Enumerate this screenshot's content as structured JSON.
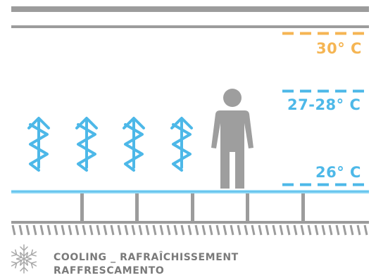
{
  "temperatures": {
    "high": "30° C",
    "mid": "27-28° C",
    "low": "26° C"
  },
  "caption": {
    "line1": "COOLING _ RAFRAÎCHISSEMENT",
    "line2": "RAFFRESCAMENTO"
  },
  "colors": {
    "warm": "#f5b553",
    "cool": "#4db8e8",
    "floor": "#8fd8f5",
    "structure": "#9c9c9c",
    "person": "#9e9e9e",
    "caption": "#7a7a7a"
  },
  "icons": {
    "air_flow": "wavy-up-arrow-icon",
    "person": "person-icon",
    "mode": "snowflake-icon"
  }
}
